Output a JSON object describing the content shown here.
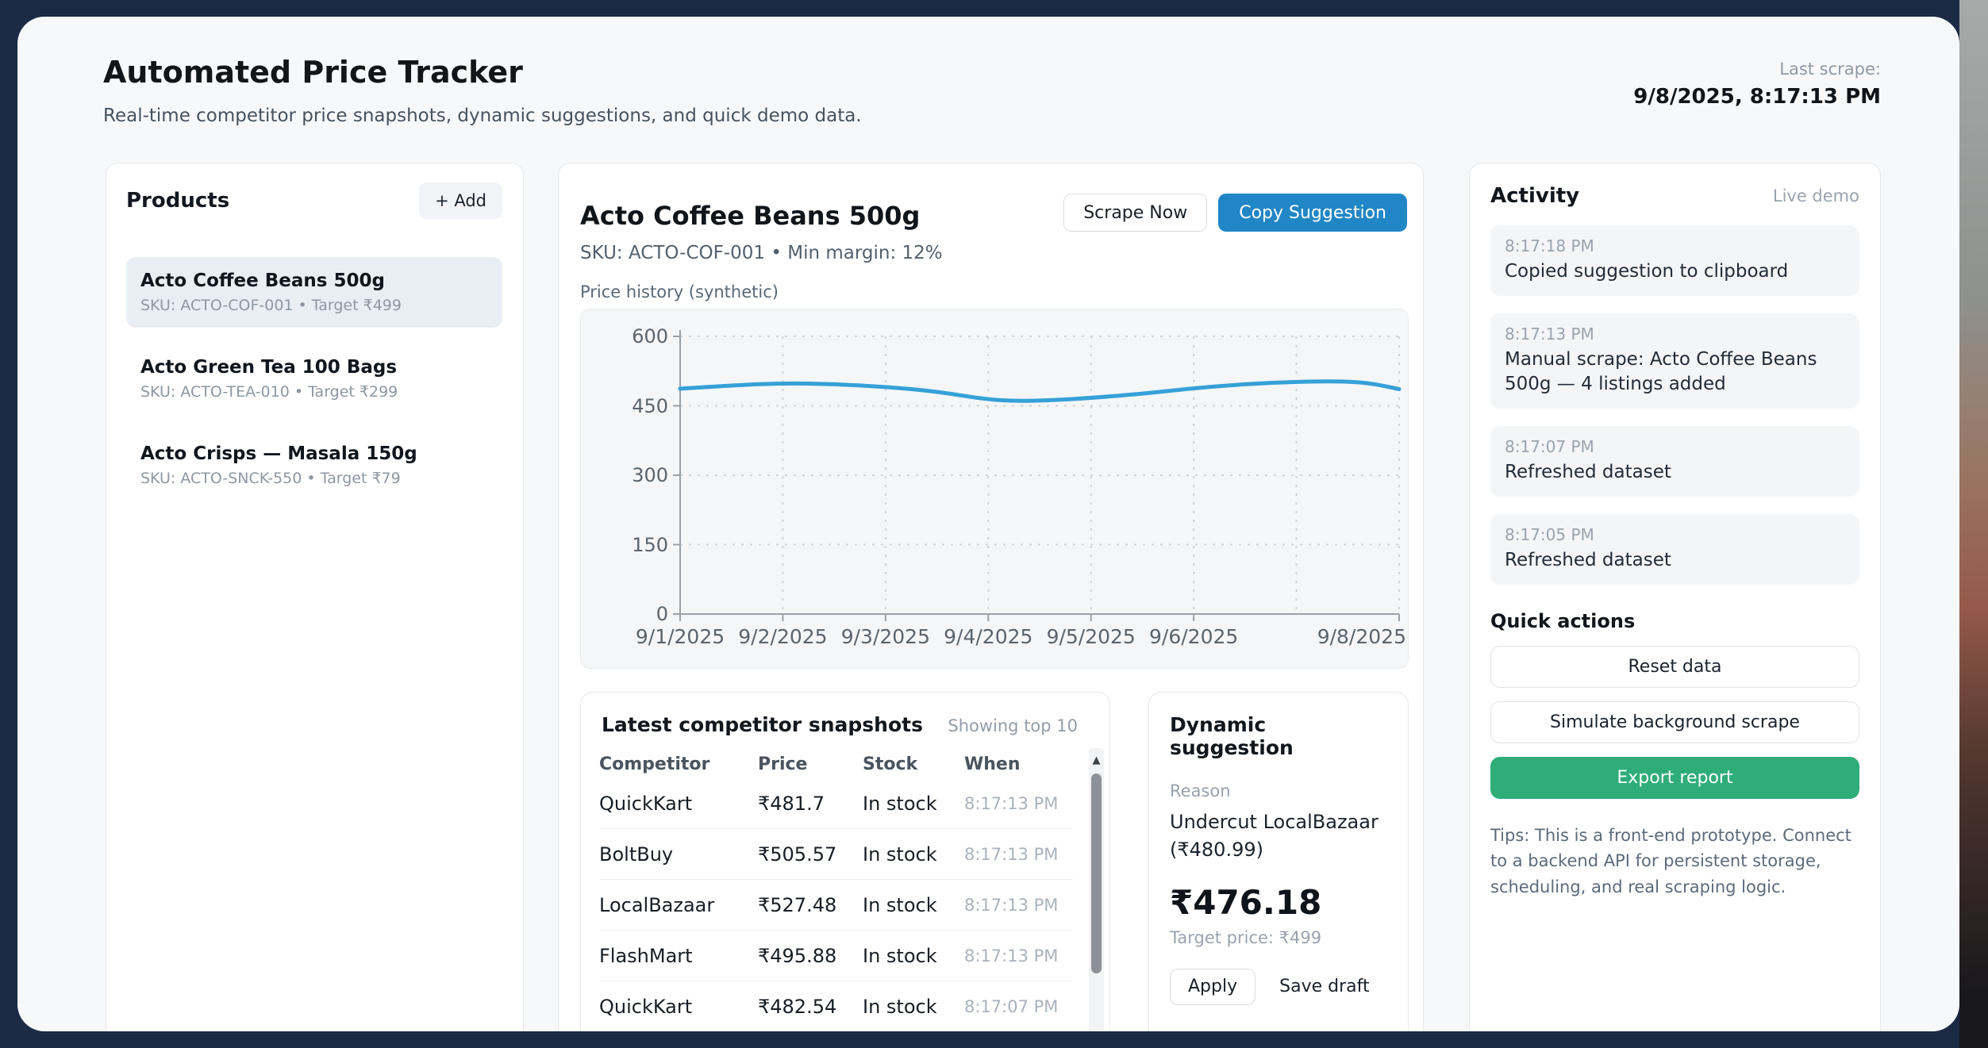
{
  "window_chrome": {
    "last_scrape_label": "Last scrape:",
    "last_scrape_value": "9/8/2025, 8:17:13 PM"
  },
  "header": {
    "title": "Automated Price Tracker",
    "subtitle": "Real-time competitor price snapshots, dynamic suggestions, and quick demo data."
  },
  "products": {
    "title": "Products",
    "add_button": "+ Add",
    "items": [
      {
        "name": "Acto Coffee Beans 500g",
        "meta": "SKU: ACTO-COF-001 • Target ₹499",
        "selected": true
      },
      {
        "name": "Acto Green Tea 100 Bags",
        "meta": "SKU: ACTO-TEA-010 • Target ₹299",
        "selected": false
      },
      {
        "name": "Acto Crisps — Masala 150g",
        "meta": "SKU: ACTO-SNCK-550 • Target ₹79",
        "selected": false
      }
    ]
  },
  "detail": {
    "title": "Acto Coffee Beans 500g",
    "meta": "SKU: ACTO-COF-001 • Min margin: 12%",
    "scrape_now": "Scrape Now",
    "copy_suggestion": "Copy Suggestion",
    "chart_label": "Price history (synthetic)"
  },
  "chart_data": {
    "type": "line",
    "title": "Price history (synthetic)",
    "xlabel": "",
    "ylabel": "",
    "xlim": [
      0,
      7
    ],
    "ylim": [
      0,
      600
    ],
    "grid": true,
    "legend": "none",
    "y_ticks": [
      0,
      150,
      300,
      450,
      600
    ],
    "x_ticks": [
      {
        "label": "9/1/2025",
        "t": 0
      },
      {
        "label": "9/2/2025",
        "t": 1
      },
      {
        "label": "9/3/2025",
        "t": 2
      },
      {
        "label": "9/4/2025",
        "t": 3
      },
      {
        "label": "9/5/2025",
        "t": 4
      },
      {
        "label": "9/6/2025",
        "t": 5
      },
      {
        "label": "9/8/2025",
        "t": 7
      }
    ],
    "series": [
      {
        "name": "price",
        "color": "#35a1d8",
        "points": [
          {
            "t": 0,
            "v": 487
          },
          {
            "t": 0.5,
            "v": 494
          },
          {
            "t": 1,
            "v": 499
          },
          {
            "t": 1.5,
            "v": 497
          },
          {
            "t": 2,
            "v": 491
          },
          {
            "t": 2.5,
            "v": 481
          },
          {
            "t": 3,
            "v": 463
          },
          {
            "t": 3.35,
            "v": 460
          },
          {
            "t": 3.7,
            "v": 463
          },
          {
            "t": 4,
            "v": 467
          },
          {
            "t": 4.5,
            "v": 476
          },
          {
            "t": 5,
            "v": 488
          },
          {
            "t": 5.5,
            "v": 497
          },
          {
            "t": 6,
            "v": 502
          },
          {
            "t": 6.4,
            "v": 503
          },
          {
            "t": 6.7,
            "v": 500
          },
          {
            "t": 7,
            "v": 486
          }
        ]
      }
    ]
  },
  "snapshots": {
    "title": "Latest competitor snapshots",
    "note": "Showing top 10",
    "columns": [
      "Competitor",
      "Price",
      "Stock",
      "When"
    ],
    "rows": [
      {
        "competitor": "QuickKart",
        "price": "₹481.7",
        "stock": "In stock",
        "when": "8:17:13 PM"
      },
      {
        "competitor": "BoltBuy",
        "price": "₹505.57",
        "stock": "In stock",
        "when": "8:17:13 PM"
      },
      {
        "competitor": "LocalBazaar",
        "price": "₹527.48",
        "stock": "In stock",
        "when": "8:17:13 PM"
      },
      {
        "competitor": "FlashMart",
        "price": "₹495.88",
        "stock": "In stock",
        "when": "8:17:13 PM"
      },
      {
        "competitor": "QuickKart",
        "price": "₹482.54",
        "stock": "In stock",
        "when": "8:17:07 PM"
      }
    ]
  },
  "suggestion": {
    "title": "Dynamic suggestion",
    "reason_label": "Reason",
    "reason": "Undercut LocalBazaar (₹480.99)",
    "price": "₹476.18",
    "target": "Target price: ₹499",
    "apply": "Apply",
    "save_draft": "Save draft"
  },
  "activity": {
    "title": "Activity",
    "badge": "Live demo",
    "items": [
      {
        "time": "8:17:18 PM",
        "text": "Copied suggestion to clipboard"
      },
      {
        "time": "8:17:13 PM",
        "text": "Manual scrape: Acto Coffee Beans 500g — 4 listings added"
      },
      {
        "time": "8:17:07 PM",
        "text": "Refreshed dataset"
      },
      {
        "time": "8:17:05 PM",
        "text": "Refreshed dataset"
      }
    ]
  },
  "quick_actions": {
    "title": "Quick actions",
    "reset": "Reset data",
    "simulate": "Simulate background scrape",
    "export": "Export report",
    "tips": "Tips: This is a front-end prototype. Connect to a backend API for persistent storage, scheduling, and real scraping logic."
  },
  "colors": {
    "accent_blue": "#2186c5",
    "line_blue": "#35a1d8",
    "green": "#2ead78",
    "navy_background": "#1b2b45",
    "selected_item": "#e9eef5"
  }
}
